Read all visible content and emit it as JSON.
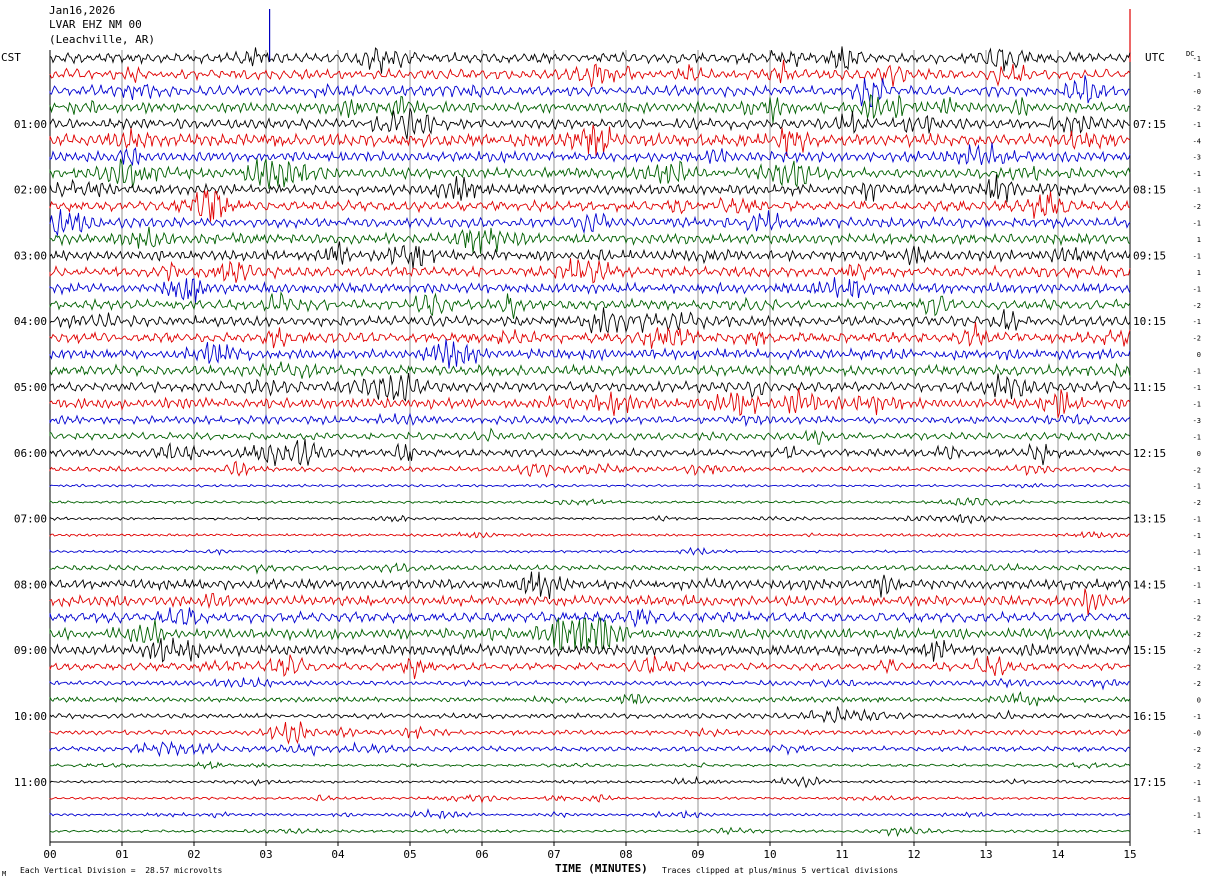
{
  "header": {
    "date": "Jan16,2026",
    "station": "LVAR EHZ NM 00",
    "location": "(Leachville, AR)"
  },
  "footer": {
    "division_note": "Each Vertical Division =  28.57 microvolts",
    "xlabel": "TIME (MINUTES)",
    "clip_note": "Traces clipped at plus/minus 5 vertical divisions",
    "mark": "M"
  },
  "colors": {
    "trace_cycle": [
      "#000000",
      "#e00000",
      "#0000d0",
      "#006000"
    ],
    "grid": "#7a7a7a",
    "marker_blue": "#0000c0",
    "marker_red": "#e00000"
  },
  "chart_data": {
    "type": "line",
    "title": "",
    "xlabel": "TIME (MINUTES)",
    "xlim": [
      0,
      15
    ],
    "x_ticks": [
      "00",
      "01",
      "02",
      "03",
      "04",
      "05",
      "06",
      "07",
      "08",
      "09",
      "10",
      "11",
      "12",
      "13",
      "14",
      "15"
    ],
    "left_axis_label": "CST",
    "right_axis_label": "UTC",
    "dc_label": "DC",
    "left_time_labels": [
      "01:00",
      "02:00",
      "03:00",
      "04:00",
      "05:00",
      "06:00",
      "07:00",
      "08:00",
      "09:00",
      "10:00",
      "11:00"
    ],
    "right_time_labels": [
      "07:15",
      "08:15",
      "09:15",
      "10:15",
      "11:15",
      "12:15",
      "13:15",
      "14:15",
      "15:15",
      "16:15",
      "17:15"
    ],
    "trace_count": 48,
    "traces_per_hour": 4,
    "minutes_per_trace": 15,
    "dc_offsets": [
      "-1",
      "-1",
      "-0",
      "-2",
      "-1",
      "-4",
      "-3",
      "-1",
      "-1",
      "-2",
      "-1",
      "1",
      "-1",
      "1",
      "-1",
      "-2",
      "-1",
      "-2",
      "0",
      "-1",
      "-1",
      "-1",
      "-3",
      "-1",
      "0",
      "-2",
      "-1",
      "-2",
      "-1",
      "-1",
      "-1",
      "-1",
      "-1",
      "-1",
      "-2",
      "-2",
      "-2",
      "-2",
      "-2",
      "0",
      "-1",
      "-0",
      "-2",
      "-2",
      "-1",
      "-1",
      "-1",
      "-1"
    ],
    "activity_levels": [
      4,
      4,
      4,
      4,
      4,
      5,
      4,
      4,
      4,
      4,
      4,
      4,
      4,
      4,
      4,
      4,
      4,
      4,
      4,
      4,
      4,
      4,
      3,
      3,
      3,
      2,
      1,
      1,
      1,
      1,
      1,
      2,
      4,
      4,
      4,
      4,
      4,
      3,
      2,
      2,
      2,
      2,
      2,
      1,
      1,
      1,
      1,
      1
    ],
    "event_markers": [
      {
        "minute": 3.05,
        "color": "blue"
      },
      {
        "minute": 15.0,
        "color": "red"
      }
    ]
  }
}
